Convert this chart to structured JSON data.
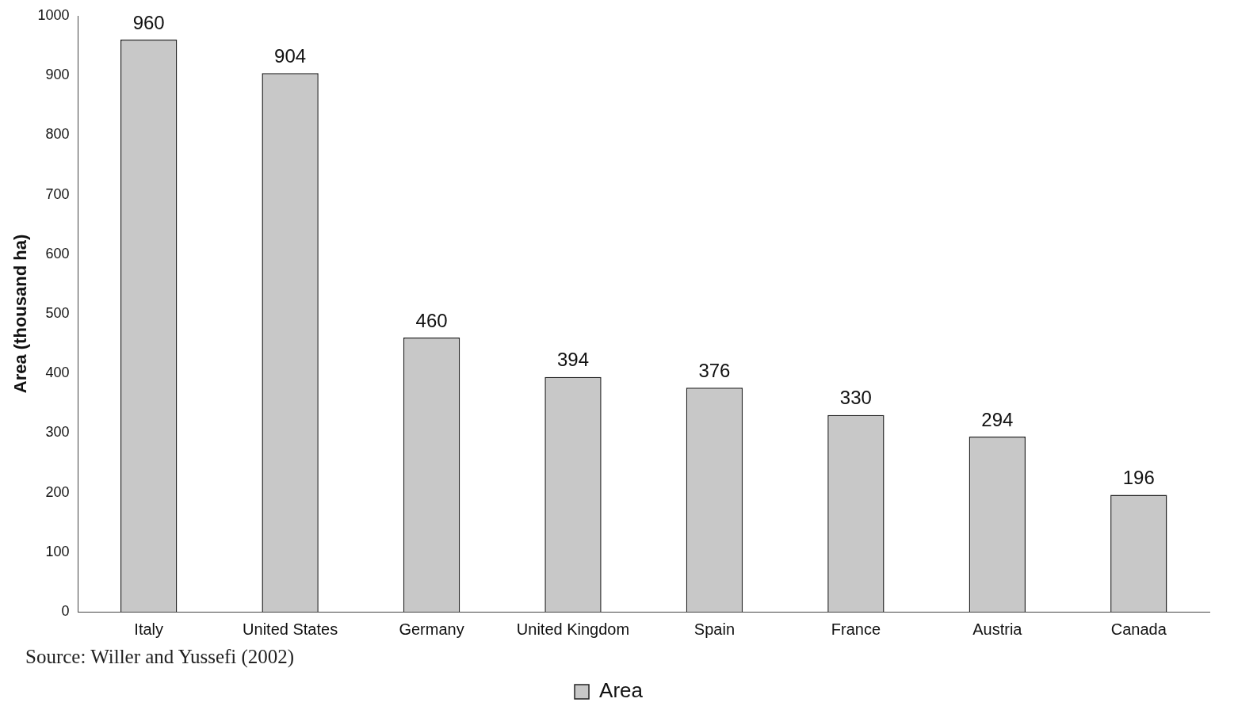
{
  "chart_data": {
    "type": "bar",
    "ylabel": "Area (thousand ha)",
    "categories": [
      "Italy",
      "United States",
      "Germany",
      "United Kingdom",
      "Spain",
      "France",
      "Austria",
      "Canada"
    ],
    "series": [
      {
        "name": "Area",
        "color": "#c8c8c8",
        "values": [
          960,
          904,
          460,
          394,
          376,
          330,
          294,
          196
        ]
      }
    ],
    "ylim": [
      0,
      1000
    ],
    "yticks": [
      0,
      100,
      200,
      300,
      400,
      500,
      600,
      700,
      800,
      900,
      1000
    ],
    "data_labels": true,
    "grid": false,
    "legend": "bottom",
    "annotations": [
      "Source: Willer and Yussefi (2002)"
    ]
  }
}
